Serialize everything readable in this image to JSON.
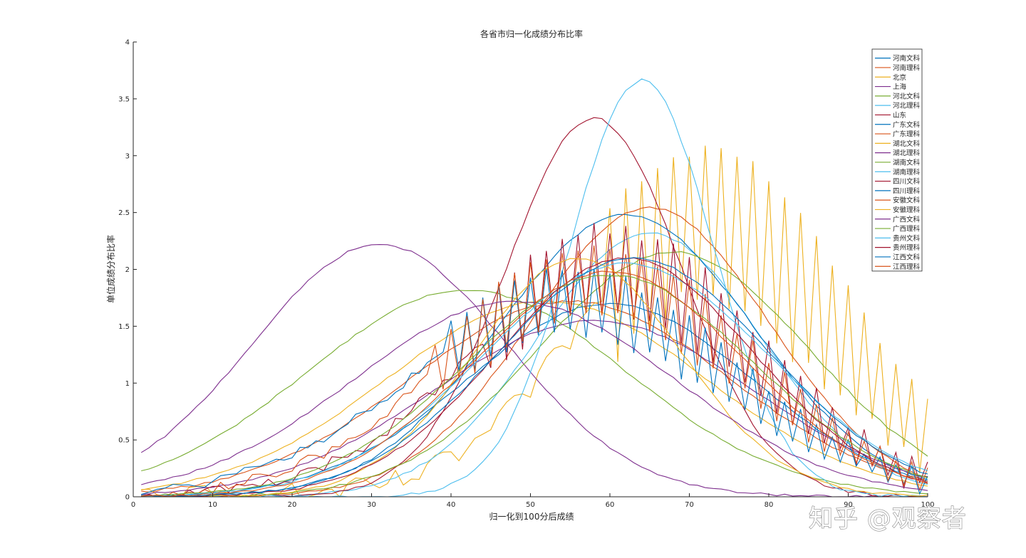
{
  "chart_data": {
    "type": "line",
    "title": "各省市归一化成绩分布比率",
    "xlabel": "归一化到100分后成绩",
    "ylabel": "单位成绩分布比率",
    "xlim": [
      0,
      100
    ],
    "ylim": [
      0,
      4
    ],
    "xticks": [
      0,
      10,
      20,
      30,
      40,
      50,
      60,
      70,
      80,
      90,
      100
    ],
    "yticks": [
      0,
      0.5,
      1,
      1.5,
      2,
      2.5,
      3,
      3.5,
      4
    ],
    "legend_position": "top-right",
    "grid": false,
    "series": [
      {
        "name": "河南文科",
        "color": "#0072BD",
        "peak": 60,
        "spread": 18,
        "max": 1.7,
        "noise": 0.03,
        "skew": 0
      },
      {
        "name": "河南理科",
        "color": "#D95319",
        "peak": 55,
        "spread": 20,
        "max": 1.72,
        "noise": 0.04,
        "skew": 0
      },
      {
        "name": "北京",
        "color": "#EDB120",
        "peak": 72,
        "spread": 16,
        "max": 2.45,
        "noise": 0.3,
        "skew": 0.1,
        "zigzag_from": 60
      },
      {
        "name": "上海",
        "color": "#7E2F8E",
        "peak": 31,
        "spread": 16,
        "max": 2.22,
        "noise": 0.03,
        "skew": 0
      },
      {
        "name": "河北文科",
        "color": "#77AC30",
        "peak": 42,
        "spread": 20,
        "max": 1.82,
        "noise": 0.03,
        "skew": 0
      },
      {
        "name": "河北理科",
        "color": "#4DBEEE",
        "peak": 65,
        "spread": 14,
        "max": 2.32,
        "noise": 0.03,
        "skew": 0
      },
      {
        "name": "山东",
        "color": "#A2142F",
        "peak": 58,
        "spread": 11,
        "max": 3.33,
        "noise": 0.03,
        "skew": 0
      },
      {
        "name": "广东文科",
        "color": "#0072BD",
        "peak": 62,
        "spread": 16,
        "max": 2.48,
        "noise": 0.03,
        "skew": 0
      },
      {
        "name": "广东理科",
        "color": "#D95319",
        "peak": 65,
        "spread": 15,
        "max": 2.54,
        "noise": 0.03,
        "skew": 0
      },
      {
        "name": "湖北文科",
        "color": "#EDB120",
        "peak": 52,
        "spread": 20,
        "max": 1.72,
        "noise": 0.03,
        "skew": 0
      },
      {
        "name": "湖北理科",
        "color": "#7E2F8E",
        "peak": 58,
        "spread": 20,
        "max": 1.55,
        "noise": 0.03,
        "skew": 0
      },
      {
        "name": "湖南文科",
        "color": "#77AC30",
        "peak": 68,
        "spread": 17,
        "max": 2.15,
        "noise": 0.03,
        "skew": 0
      },
      {
        "name": "湖南理科",
        "color": "#4DBEEE",
        "peak": 64,
        "spread": 9,
        "max": 3.66,
        "noise": 0.03,
        "skew": 0
      },
      {
        "name": "四川文科",
        "color": "#A2142F",
        "peak": 60,
        "spread": 18,
        "max": 2.0,
        "noise": 0.2,
        "skew": 0,
        "zigzag_from": 45
      },
      {
        "name": "四川理科",
        "color": "#0072BD",
        "peak": 55,
        "spread": 20,
        "max": 1.72,
        "noise": 0.18,
        "skew": 0,
        "zigzag_from": 40
      },
      {
        "name": "安徽文科",
        "color": "#D95319",
        "peak": 58,
        "spread": 19,
        "max": 1.9,
        "noise": 0.18,
        "skew": 0,
        "zigzag_from": 38
      },
      {
        "name": "安徽理科",
        "color": "#EDB120",
        "peak": 56,
        "spread": 13,
        "max": 2.1,
        "noise": 0.03,
        "skew": 0
      },
      {
        "name": "广西文科",
        "color": "#7E2F8E",
        "peak": 48,
        "spread": 20,
        "max": 1.72,
        "noise": 0.03,
        "skew": 0
      },
      {
        "name": "广西理科",
        "color": "#77AC30",
        "peak": 60,
        "spread": 18,
        "max": 1.95,
        "noise": 0.03,
        "skew": 0
      },
      {
        "name": "贵州文科",
        "color": "#4DBEEE",
        "peak": 62,
        "spread": 18,
        "max": 2.05,
        "noise": 0.03,
        "skew": 0
      },
      {
        "name": "贵州理科",
        "color": "#A2142F",
        "peak": 62,
        "spread": 16,
        "max": 2.1,
        "noise": 0.03,
        "skew": 0
      },
      {
        "name": "江西文科",
        "color": "#0072BD",
        "peak": 63,
        "spread": 17,
        "max": 2.1,
        "noise": 0.03,
        "skew": 0
      },
      {
        "name": "江西理科",
        "color": "#D95319",
        "peak": 60,
        "spread": 17,
        "max": 1.98,
        "noise": 0.03,
        "skew": 0
      }
    ]
  },
  "watermark": {
    "text": "知乎 @观察者"
  }
}
